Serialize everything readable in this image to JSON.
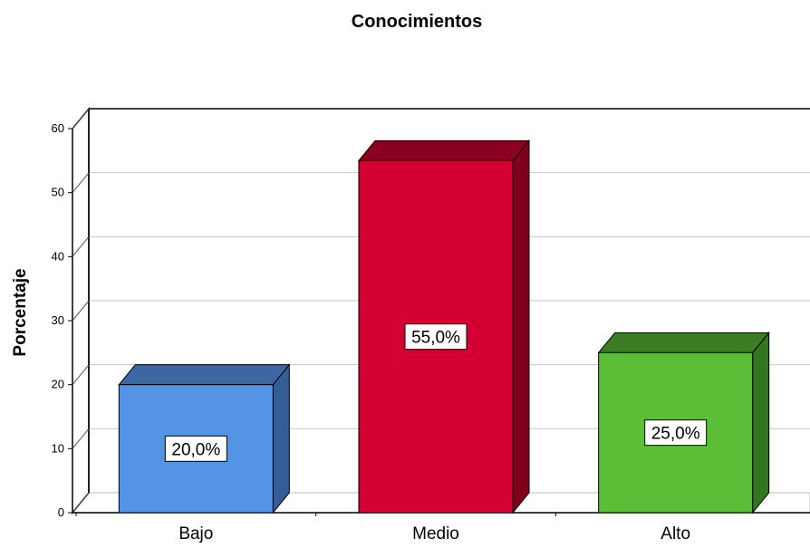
{
  "chart_data": {
    "type": "bar",
    "title": "Conocimientos",
    "xlabel": "",
    "ylabel": "Porcentaje",
    "categories": [
      "Bajo",
      "Medio",
      "Alto"
    ],
    "values": [
      20,
      55,
      25
    ],
    "data_labels": [
      "20,0%",
      "55,0%",
      "25,0%"
    ],
    "ylim": [
      0,
      60
    ],
    "yticks": [
      0,
      10,
      20,
      30,
      40,
      50,
      60
    ],
    "grid": true,
    "style": "3d",
    "colors": {
      "front": [
        "#5494E4",
        "#D40031",
        "#5CBE36"
      ],
      "top": [
        "#3D67A2",
        "#8B0020",
        "#3B7D24"
      ],
      "side": [
        "#355E97",
        "#7E001C",
        "#347520"
      ]
    }
  }
}
